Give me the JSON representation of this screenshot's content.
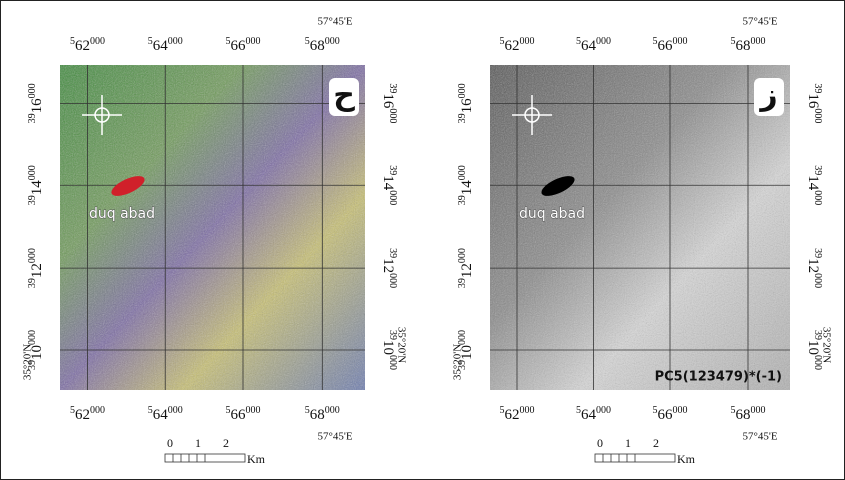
{
  "panels": [
    {
      "letter": "ح",
      "place": "duq abad",
      "x_labels": [
        "562000",
        "564000",
        "566000",
        "568000"
      ],
      "y_labels": [
        "3916000",
        "3914000",
        "3912000",
        "3910000"
      ],
      "lon": "57°45'E",
      "lat": "35°20'N",
      "scale": {
        "ticks": [
          "0",
          "1",
          "2"
        ],
        "unit": "Km"
      }
    },
    {
      "letter": "ز",
      "place": "duq abad",
      "x_labels": [
        "562000",
        "564000",
        "566000",
        "568000"
      ],
      "y_labels": [
        "3916000",
        "3914000",
        "3912000",
        "3910000"
      ],
      "lon": "57°45'E",
      "lat": "35°20'N",
      "scale": {
        "ticks": [
          "0",
          "1",
          "2"
        ],
        "unit": "Km"
      },
      "caption": "PC5(123479)*(-1)"
    }
  ]
}
